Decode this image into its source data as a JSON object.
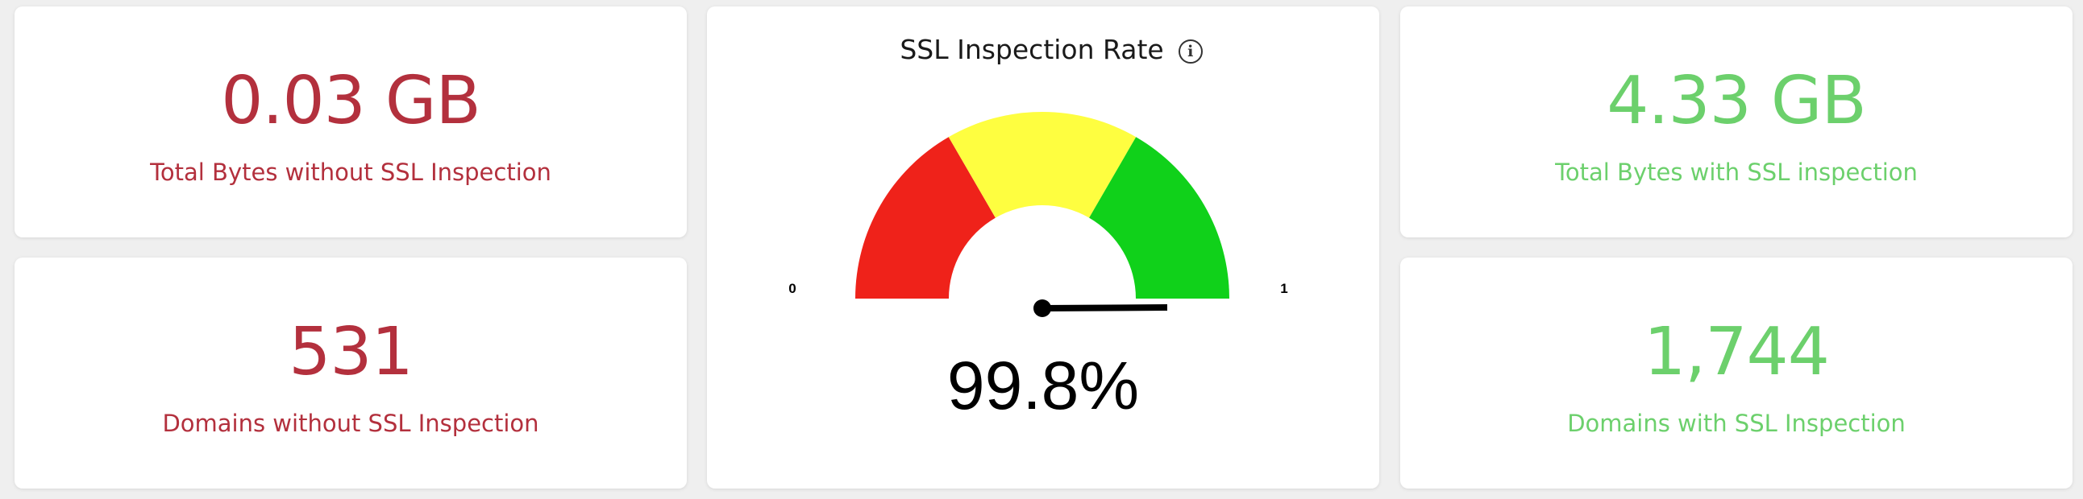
{
  "cards": {
    "bytes_without": {
      "value": "0.03 GB",
      "label": "Total Bytes without SSL Inspection"
    },
    "domains_without": {
      "value": "531",
      "label": "Domains without SSL Inspection"
    },
    "bytes_with": {
      "value": "4.33 GB",
      "label": "Total Bytes with SSL inspection"
    },
    "domains_with": {
      "value": "1,744",
      "label": "Domains with SSL Inspection"
    }
  },
  "gauge": {
    "title": "SSL Inspection Rate",
    "info_icon": "info-icon",
    "min_label": "0",
    "max_label": "1",
    "min": 0,
    "max": 1,
    "value": 0.998,
    "value_label": "99.8%",
    "bands": [
      {
        "from": 0,
        "to": 0.333,
        "color": "#ef221a"
      },
      {
        "from": 0.333,
        "to": 0.667,
        "color": "#fefe40"
      },
      {
        "from": 0.667,
        "to": 1,
        "color": "#10d11a"
      }
    ]
  },
  "colors": {
    "negative": "#b3303d",
    "positive": "#6cd06c"
  }
}
